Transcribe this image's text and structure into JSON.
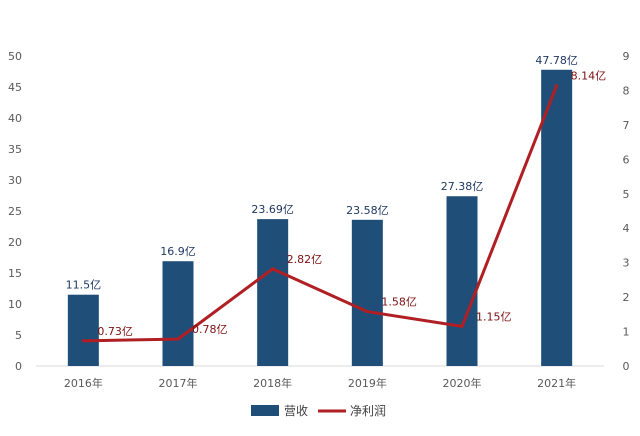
{
  "chart_data": {
    "type": "bar+line",
    "categories": [
      "2016年",
      "2017年",
      "2018年",
      "2019年",
      "2020年",
      "2021年"
    ],
    "series": [
      {
        "name": "营收",
        "type": "bar",
        "axis": "left",
        "values": [
          11.5,
          16.9,
          23.69,
          23.58,
          27.38,
          47.78
        ],
        "labels": [
          "11.5亿",
          "16.9亿",
          "23.69亿",
          "23.58亿",
          "27.38亿",
          "47.78亿"
        ],
        "color": "#1f4e79"
      },
      {
        "name": "净利润",
        "type": "line",
        "axis": "right",
        "values": [
          0.73,
          0.78,
          2.82,
          1.58,
          1.15,
          8.14
        ],
        "labels": [
          "0.73亿",
          "0.78亿",
          "2.82亿",
          "1.58亿",
          "1.15亿",
          "8.14亿"
        ],
        "color": "#b01f24"
      }
    ],
    "y_left": {
      "min": 0,
      "max": 50,
      "ticks": [
        "0",
        "5",
        "10",
        "15",
        "20",
        "25",
        "30",
        "35",
        "40",
        "45",
        "50"
      ]
    },
    "y_right": {
      "min": 0,
      "max": 9,
      "ticks": [
        "0",
        "1",
        "2",
        "3",
        "4",
        "5",
        "6",
        "7",
        "8",
        "9"
      ]
    },
    "grid": false,
    "legend": "bottom"
  }
}
